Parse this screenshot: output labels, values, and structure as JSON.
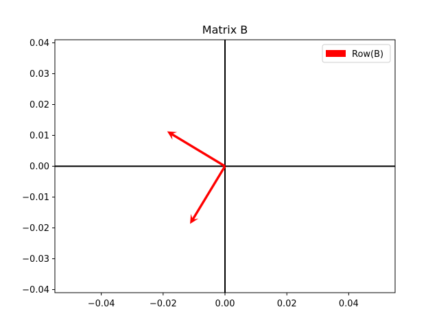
{
  "chart_data": {
    "type": "quiver",
    "title": "Matrix B",
    "xlabel": "",
    "ylabel": "",
    "xlim": [
      -0.055,
      0.055
    ],
    "ylim": [
      -0.041,
      0.041
    ],
    "x_ticks": [
      -0.04,
      -0.02,
      0.0,
      0.02,
      0.04
    ],
    "x_tick_labels": [
      "−0.04",
      "−0.02",
      "0.00",
      "0.02",
      "0.04"
    ],
    "y_ticks": [
      0.04,
      0.03,
      0.02,
      0.01,
      0.0,
      -0.01,
      -0.02,
      -0.03,
      -0.04
    ],
    "y_tick_labels": [
      "0.04",
      "0.03",
      "0.02",
      "0.01",
      "0.00",
      "−0.01",
      "−0.02",
      "−0.03",
      "−0.04"
    ],
    "grid": false,
    "legend": {
      "placement": "top-right",
      "entries": [
        {
          "label": "Row(B)",
          "color": "#ff0000"
        }
      ]
    },
    "axis_lines": {
      "color": "#000000",
      "x": 0,
      "y": 0
    },
    "series": [
      {
        "name": "Row(B)",
        "color": "#ff0000",
        "vectors": [
          {
            "x0": 0,
            "y0": 0,
            "dx": -0.0187,
            "dy": 0.0113
          },
          {
            "x0": 0,
            "y0": 0,
            "dx": -0.0113,
            "dy": -0.0187
          }
        ]
      }
    ]
  }
}
